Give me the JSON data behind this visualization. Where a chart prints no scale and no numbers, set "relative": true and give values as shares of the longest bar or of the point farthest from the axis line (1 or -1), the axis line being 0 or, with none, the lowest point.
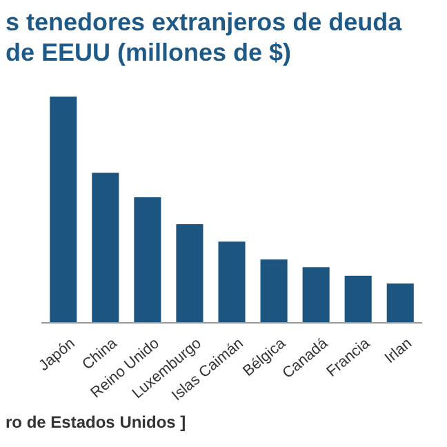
{
  "chart_data": {
    "type": "bar",
    "title": "s tenedores extranjeros de deuda de EEUU (millones de $)",
    "categories": [
      "Japón",
      "China",
      "Reino Unido",
      "Luxemburgo",
      "Islas Caimán",
      "Bélgica",
      "Canadá",
      "Francia",
      "Irlan"
    ],
    "values": [
      1,
      0.663,
      0.555,
      0.436,
      0.359,
      0.28,
      0.246,
      0.208,
      0.174
    ],
    "color": "#1b5580",
    "relative": true,
    "annotations": [
      "ro de Estados Unidos ]"
    ]
  }
}
